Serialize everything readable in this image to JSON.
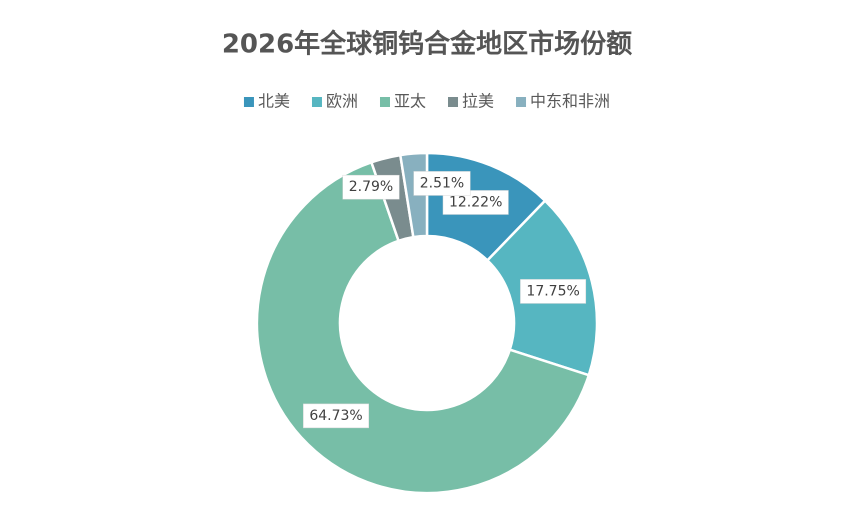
{
  "chart_data": {
    "type": "donut",
    "title": "2026年全球铜钨合金地区市场份额",
    "categories": [
      "北美",
      "欧洲",
      "亚太",
      "拉美",
      "中东和非洲"
    ],
    "values": [
      12.22,
      17.75,
      64.73,
      2.79,
      2.51
    ],
    "value_labels": [
      "12.22%",
      "17.75%",
      "64.73%",
      "2.79%",
      "2.51%"
    ],
    "colors": [
      "#3a95bb",
      "#56b6c1",
      "#77bea7",
      "#7a8c8e",
      "#88b0bf"
    ],
    "legend": "top"
  }
}
